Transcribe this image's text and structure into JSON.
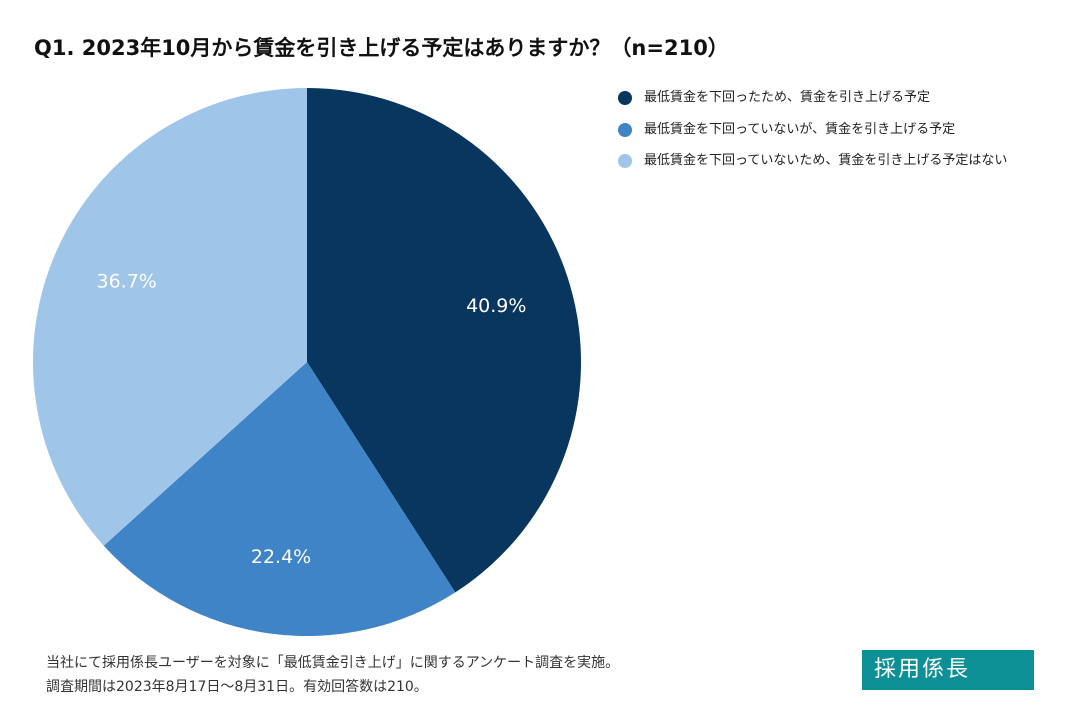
{
  "chart_data": {
    "type": "pie",
    "title": "Q1. 2023年10月から賃金を引き上げる予定はありますか？（n=210）",
    "categories": [
      "最低賃金を下回ったため、賃金を引き上げる予定",
      "最低賃金を下回っていないが、賃金を引き上げる予定",
      "最低賃金を下回っていないため、賃金を引き上げる予定はない"
    ],
    "values": [
      40.9,
      22.4,
      36.7
    ],
    "value_labels": [
      "40.9%",
      "22.4%",
      "36.7%"
    ],
    "colors": [
      "#08365e",
      "#3f84c6",
      "#9fc5e8"
    ],
    "legend": "top-right"
  },
  "note": [
    "当社にて採用係長ユーザーを対象に「最低賃金引き上げ」に関するアンケート調査を実施。",
    "調査期間は2023年8月17日〜8月31日。有効回答数は210。"
  ],
  "logo": "採用係長"
}
